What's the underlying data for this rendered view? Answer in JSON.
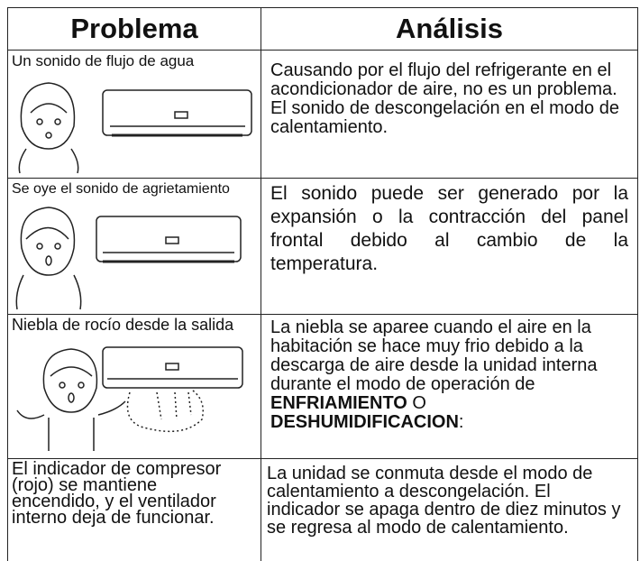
{
  "table": {
    "headers": [
      "Problema",
      "Análisis"
    ],
    "rows": [
      {
        "problem": "Un sonido de flujo de agua",
        "analysis": [
          "Causando por el flujo del refrigerante en el acondicionador de aire, no es un problema.",
          "El sonido de descongelación en el modo de calentamiento."
        ]
      },
      {
        "problem": "Se oye el sonido de agrietamiento",
        "analysis": [
          "El sonido puede ser generado por la expansión o la contracción del panel frontal debido al cambio de la temperatura."
        ]
      },
      {
        "problem": "Niebla de rocío desde la salida",
        "analysis": [
          "La niebla se aparee cuando el aire en la habitación se hace muy frio debido a la descarga de aire desde la unidad interna durante el modo de operación de ",
          "ENFRIAMIENTO",
          " O ",
          "DESHUMIDIFICACION",
          ":"
        ]
      },
      {
        "problem": "El indicador de compresor (rojo) se mantiene encendido, y el ventilador interno deja de funcionar.",
        "analysis": [
          "La unidad se conmuta desde el modo de calentamiento a descongelación. El indicador se apaga dentro de diez minutos y se regresa al modo de calentamiento."
        ]
      }
    ]
  }
}
